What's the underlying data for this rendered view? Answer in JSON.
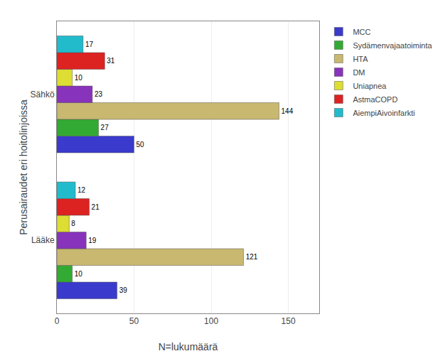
{
  "chart_data": {
    "type": "bar",
    "orientation": "horizontal",
    "xlabel": "N=lukumäärä",
    "ylabel": "Perusairaudet eri hoitolinjoissa",
    "categories": [
      "Sähkö",
      "Lääke"
    ],
    "series": [
      {
        "name": "MCC",
        "color": "#3a3acc",
        "values": [
          50,
          39
        ]
      },
      {
        "name": "Sydämenvajaatoiminta",
        "color": "#33aa33",
        "values": [
          27,
          10
        ]
      },
      {
        "name": "HTA",
        "color": "#c8b870",
        "values": [
          144,
          121
        ]
      },
      {
        "name": "DM",
        "color": "#8833bb",
        "values": [
          23,
          19
        ]
      },
      {
        "name": "Uniapnea",
        "color": "#dddd33",
        "values": [
          10,
          8
        ]
      },
      {
        "name": "AstmaCOPD",
        "color": "#dd2222",
        "values": [
          31,
          21
        ]
      },
      {
        "name": "AiempiAivoinfarkti",
        "color": "#22bbcc",
        "values": [
          17,
          12
        ]
      }
    ],
    "xlim": [
      0,
      170
    ],
    "xticks": [
      0,
      50,
      100,
      150
    ],
    "grid": true,
    "legend": "right",
    "data_labels": true
  }
}
